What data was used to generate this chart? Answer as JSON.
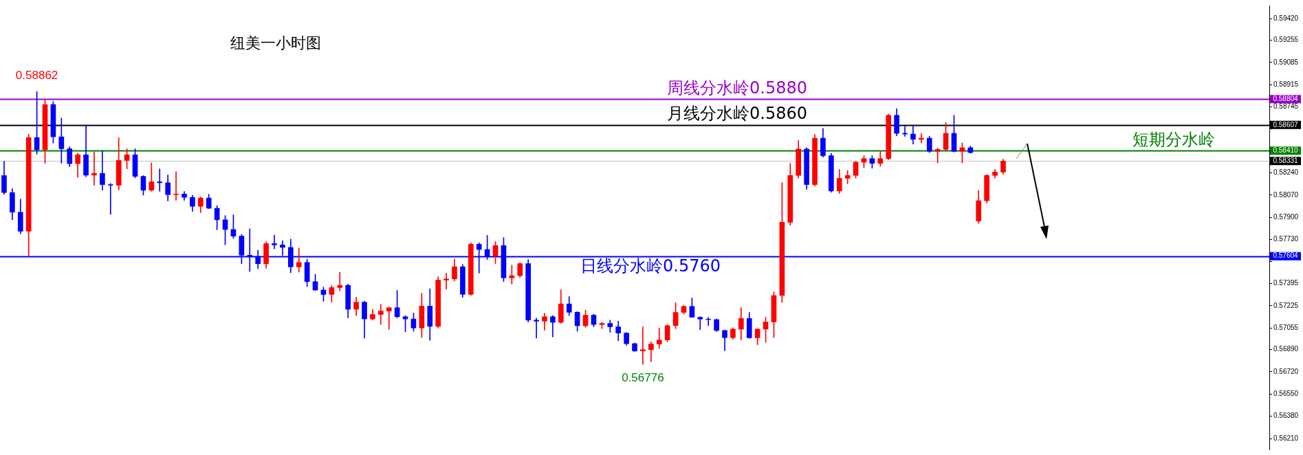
{
  "chart_data": {
    "type": "candlestick",
    "title": "纽美一小时图",
    "categories": [
      null,
      null,
      null,
      null,
      null,
      null,
      null,
      null,
      null,
      null,
      null,
      null,
      null,
      null,
      null,
      null,
      null,
      null,
      null,
      null,
      null,
      null,
      null,
      null,
      null,
      null,
      null,
      null,
      null,
      null,
      null,
      null,
      null,
      null,
      null,
      null,
      null,
      null,
      null,
      null,
      null,
      null,
      null,
      null,
      null,
      null,
      null,
      null,
      null,
      null,
      null,
      null,
      null,
      null,
      null,
      null,
      null,
      null,
      null,
      null,
      null,
      null,
      null,
      null,
      null,
      null,
      null,
      null,
      null,
      null,
      null,
      null,
      null,
      null,
      null,
      null,
      null,
      null,
      null,
      null,
      null,
      null,
      null,
      null,
      null,
      null,
      null,
      null,
      null,
      null,
      null,
      null,
      null,
      null,
      null,
      null,
      null,
      null,
      null,
      null,
      null,
      null,
      null,
      null,
      null,
      null,
      null,
      null,
      null,
      null,
      null,
      null,
      null,
      null,
      null,
      null,
      null,
      null,
      null,
      null,
      null,
      null,
      null,
      null,
      null,
      null,
      null,
      null,
      null,
      null,
      null,
      null,
      null,
      null,
      null,
      null,
      null,
      null,
      null,
      null,
      null,
      null,
      null,
      null,
      null,
      null,
      null,
      null,
      null,
      null,
      null,
      null,
      null,
      null,
      null
    ],
    "ohlc": [
      [
        0.5822,
        0.5833,
        0.58075,
        0.5809
      ],
      [
        0.5809,
        0.5812,
        0.57882,
        0.5794
      ],
      [
        0.5794,
        0.5804,
        0.57774,
        0.57794
      ],
      [
        0.57794,
        0.58537,
        0.57604,
        0.58511
      ],
      [
        0.58511,
        0.58862,
        0.58383,
        0.58417
      ],
      [
        0.58417,
        0.58803,
        0.58314,
        0.58763
      ],
      [
        0.58763,
        0.58786,
        0.58468,
        0.58516
      ],
      [
        0.58516,
        0.5866,
        0.58314,
        0.58425
      ],
      [
        0.58425,
        0.5844,
        0.58288,
        0.58311
      ],
      [
        0.58311,
        0.58391,
        0.58206,
        0.58379
      ],
      [
        0.58379,
        0.586,
        0.58211,
        0.58223
      ],
      [
        0.58223,
        0.584,
        0.58146,
        0.58237
      ],
      [
        0.58237,
        0.58408,
        0.58108,
        0.58151
      ],
      [
        0.58151,
        0.5816,
        0.57923,
        0.58146
      ],
      [
        0.58146,
        0.58509,
        0.5811,
        0.58336
      ],
      [
        0.58336,
        0.58425,
        0.58271,
        0.58379
      ],
      [
        0.58379,
        0.58425,
        0.58202,
        0.58214
      ],
      [
        0.58214,
        0.5822,
        0.5807,
        0.58108
      ],
      [
        0.58108,
        0.58317,
        0.581,
        0.58172
      ],
      [
        0.58172,
        0.58271,
        0.581,
        0.58165
      ],
      [
        0.58165,
        0.58225,
        0.58026,
        0.58074
      ],
      [
        0.58074,
        0.58249,
        0.58031,
        0.58079
      ],
      [
        0.58079,
        0.58099,
        0.58031,
        0.58053
      ],
      [
        0.58053,
        0.5807,
        0.57945,
        0.57985
      ],
      [
        0.57985,
        0.58057,
        0.57937,
        0.58048
      ],
      [
        0.58048,
        0.58077,
        0.57967,
        0.5797
      ],
      [
        0.5797,
        0.5799,
        0.57806,
        0.57882
      ],
      [
        0.57882,
        0.57914,
        0.57691,
        0.57808
      ],
      [
        0.57808,
        0.5792,
        0.5774,
        0.57757
      ],
      [
        0.57757,
        0.5777,
        0.57546,
        0.57611
      ],
      [
        0.57611,
        0.57813,
        0.57487,
        0.57602
      ],
      [
        0.57602,
        0.57649,
        0.57508,
        0.57546
      ],
      [
        0.57546,
        0.57714,
        0.57511,
        0.577
      ],
      [
        0.577,
        0.57765,
        0.5766,
        0.5769
      ],
      [
        0.5769,
        0.57722,
        0.57611,
        0.57671
      ],
      [
        0.57671,
        0.57734,
        0.57477,
        0.57522
      ],
      [
        0.57522,
        0.57666,
        0.57482,
        0.57556
      ],
      [
        0.57556,
        0.5758,
        0.57371,
        0.57409
      ],
      [
        0.57409,
        0.57465,
        0.5734,
        0.57345
      ],
      [
        0.57345,
        0.57367,
        0.57259,
        0.57311
      ],
      [
        0.57311,
        0.57381,
        0.57252,
        0.57364
      ],
      [
        0.57364,
        0.57481,
        0.57338,
        0.57381
      ],
      [
        0.57381,
        0.5739,
        0.57132,
        0.57198
      ],
      [
        0.57198,
        0.5729,
        0.5715,
        0.57252
      ],
      [
        0.57252,
        0.5726,
        0.56978,
        0.57124
      ],
      [
        0.57124,
        0.57198,
        0.57115,
        0.57158
      ],
      [
        0.57158,
        0.57235,
        0.57081,
        0.57184
      ],
      [
        0.57184,
        0.57215,
        0.57043,
        0.5721
      ],
      [
        0.5721,
        0.57342,
        0.57132,
        0.57141
      ],
      [
        0.57141,
        0.5715,
        0.57026,
        0.57124
      ],
      [
        0.57124,
        0.5717,
        0.5703,
        0.57055
      ],
      [
        0.57055,
        0.57321,
        0.56982,
        0.57222
      ],
      [
        0.57222,
        0.57355,
        0.56961,
        0.57067
      ],
      [
        0.57067,
        0.57445,
        0.57055,
        0.57421
      ],
      [
        0.57421,
        0.57475,
        0.57352,
        0.5743
      ],
      [
        0.5743,
        0.57582,
        0.57415,
        0.57523
      ],
      [
        0.57523,
        0.5754,
        0.5729,
        0.57312
      ],
      [
        0.57312,
        0.57707,
        0.57304,
        0.57695
      ],
      [
        0.57695,
        0.57707,
        0.57475,
        0.57655
      ],
      [
        0.57655,
        0.57763,
        0.57578,
        0.57604
      ],
      [
        0.57604,
        0.57715,
        0.57547,
        0.57685
      ],
      [
        0.57685,
        0.57746,
        0.5741,
        0.57438
      ],
      [
        0.57438,
        0.57535,
        0.5739,
        0.57455
      ],
      [
        0.57455,
        0.57553,
        0.57441,
        0.57547
      ],
      [
        0.57547,
        0.57578,
        0.571,
        0.57115
      ],
      [
        0.57115,
        0.5713,
        0.56978,
        0.57107
      ],
      [
        0.57107,
        0.57167,
        0.57038,
        0.57141
      ],
      [
        0.57141,
        0.5715,
        0.56987,
        0.57098
      ],
      [
        0.57098,
        0.57347,
        0.5709,
        0.57239
      ],
      [
        0.57239,
        0.57295,
        0.5715,
        0.57175
      ],
      [
        0.57175,
        0.5718,
        0.5703,
        0.57072
      ],
      [
        0.57072,
        0.57192,
        0.5706,
        0.57153
      ],
      [
        0.57153,
        0.5716,
        0.57064,
        0.57081
      ],
      [
        0.57081,
        0.57098,
        0.5705,
        0.5709
      ],
      [
        0.5709,
        0.57115,
        0.57021,
        0.57064
      ],
      [
        0.57064,
        0.57107,
        0.56958,
        0.57016
      ],
      [
        0.57016,
        0.5702,
        0.56923,
        0.56935
      ],
      [
        0.56935,
        0.5694,
        0.56875,
        0.56879
      ],
      [
        0.56879,
        0.57064,
        0.56776,
        0.56889
      ],
      [
        0.56889,
        0.5695,
        0.56797,
        0.56932
      ],
      [
        0.56932,
        0.57055,
        0.569,
        0.56963
      ],
      [
        0.56963,
        0.5708,
        0.5695,
        0.57073
      ],
      [
        0.57073,
        0.57248,
        0.5705,
        0.57174
      ],
      [
        0.57174,
        0.57229,
        0.5716,
        0.5722
      ],
      [
        0.5722,
        0.57284,
        0.57137,
        0.57137
      ],
      [
        0.57137,
        0.5714,
        0.57042,
        0.57123
      ],
      [
        0.57123,
        0.57137,
        0.57073,
        0.57119
      ],
      [
        0.57119,
        0.57125,
        0.57027,
        0.57036
      ],
      [
        0.57036,
        0.5704,
        0.5688,
        0.56981
      ],
      [
        0.56981,
        0.57055,
        0.5697,
        0.57046
      ],
      [
        0.57046,
        0.57211,
        0.56963,
        0.57128
      ],
      [
        0.57128,
        0.57174,
        0.56975,
        0.5698
      ],
      [
        0.5698,
        0.5705,
        0.56926,
        0.57046
      ],
      [
        0.57046,
        0.57137,
        0.56944,
        0.57101
      ],
      [
        0.57101,
        0.5733,
        0.56981,
        0.57303
      ],
      [
        0.57303,
        0.58166,
        0.5725,
        0.57863
      ],
      [
        0.57863,
        0.58313,
        0.57839,
        0.58221
      ],
      [
        0.58221,
        0.58488,
        0.582,
        0.58423
      ],
      [
        0.58423,
        0.58433,
        0.58115,
        0.58151
      ],
      [
        0.58151,
        0.58534,
        0.5814,
        0.58506
      ],
      [
        0.58506,
        0.5858,
        0.5836,
        0.58372
      ],
      [
        0.58372,
        0.5839,
        0.58093,
        0.58102
      ],
      [
        0.58102,
        0.58267,
        0.58083,
        0.58199
      ],
      [
        0.58199,
        0.58258,
        0.58157,
        0.58221
      ],
      [
        0.58221,
        0.58328,
        0.582,
        0.58322
      ],
      [
        0.58322,
        0.58372,
        0.5828,
        0.5835
      ],
      [
        0.5835,
        0.58372,
        0.58276,
        0.58313
      ],
      [
        0.58313,
        0.58409,
        0.5829,
        0.5835
      ],
      [
        0.5835,
        0.5869,
        0.5834,
        0.58681
      ],
      [
        0.58681,
        0.58732,
        0.58524,
        0.58543
      ],
      [
        0.58543,
        0.58598,
        0.5852,
        0.58537
      ],
      [
        0.58537,
        0.58598,
        0.5846,
        0.58497
      ],
      [
        0.58497,
        0.58543,
        0.58469,
        0.58506
      ],
      [
        0.58506,
        0.5852,
        0.58396,
        0.58405
      ],
      [
        0.58405,
        0.5843,
        0.58317,
        0.5842
      ],
      [
        0.5842,
        0.58625,
        0.5841,
        0.58543
      ],
      [
        0.58543,
        0.58681,
        0.584,
        0.58405
      ],
      [
        0.58405,
        0.58469,
        0.58317,
        0.58433
      ],
      [
        0.58433,
        0.58445,
        0.5839,
        0.58396
      ],
      [
        0.57872,
        0.58107,
        0.57855,
        0.58028
      ],
      [
        0.58028,
        0.5823,
        0.5801,
        0.58221
      ],
      [
        0.58221,
        0.58267,
        0.582,
        0.58247
      ],
      [
        0.58247,
        0.58345,
        0.5823,
        0.58331
      ],
      null,
      null,
      null,
      null,
      null,
      null,
      null,
      null,
      null,
      null,
      null,
      null,
      null,
      null,
      null,
      null,
      null,
      null,
      null,
      null,
      null,
      null,
      null,
      null,
      null,
      null,
      null,
      null,
      null,
      null,
      null,
      null
    ],
    "ylim": [
      0.56126,
      0.5952
    ],
    "yticks": [
      {
        "value": 0.5942,
        "label": "0.59420"
      },
      {
        "value": 0.59255,
        "label": "0.59255"
      },
      {
        "value": 0.59085,
        "label": "0.59085"
      },
      {
        "value": 0.58915,
        "label": "0.58915"
      },
      {
        "value": 0.58745,
        "label": "0.58745"
      },
      {
        "value": 0.58575,
        "label": null
      },
      {
        "value": 0.5824,
        "label": "0.58240"
      },
      {
        "value": 0.5807,
        "label": "0.58070"
      },
      {
        "value": 0.579,
        "label": "0.57900"
      },
      {
        "value": 0.5773,
        "label": "0.57730"
      },
      {
        "value": 0.57565,
        "label": null
      },
      {
        "value": 0.57395,
        "label": "0.57395"
      },
      {
        "value": 0.57225,
        "label": "0.57225"
      },
      {
        "value": 0.57055,
        "label": "0.57055"
      },
      {
        "value": 0.5689,
        "label": "0.56890"
      },
      {
        "value": 0.5672,
        "label": "0.56720"
      },
      {
        "value": 0.5655,
        "label": "0.56550"
      },
      {
        "value": 0.5638,
        "label": "0.56380"
      },
      {
        "value": 0.5621,
        "label": "0.56210"
      }
    ],
    "ref_lines": [
      {
        "axis": "y",
        "value": 0.58804,
        "label": "周线分水岭0.5880",
        "color": "#9900cc"
      },
      {
        "axis": "y",
        "value": 0.58607,
        "label": "月线分水岭0.5860",
        "color": "#000000"
      },
      {
        "axis": "y",
        "value": 0.5841,
        "label": "短期分水岭",
        "color": "#008000"
      },
      {
        "axis": "y",
        "value": 0.58331,
        "label": null,
        "color": "#c0c0c0"
      },
      {
        "axis": "y",
        "value": 0.57604,
        "label": "日线分水岭0.5760",
        "color": "#0000ff"
      }
    ],
    "annotations": [
      "0.58862",
      "0.56776",
      "0.58804",
      "0.58607",
      "0.58410",
      "0.58331",
      "0.57604"
    ]
  }
}
